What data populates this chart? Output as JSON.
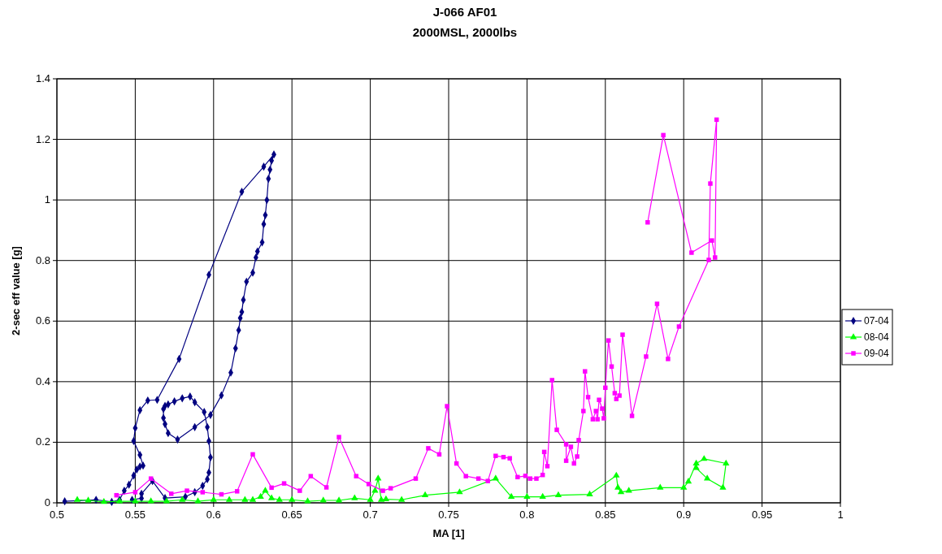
{
  "chart_data": {
    "type": "line",
    "title": "J-066 AF01",
    "subtitle": "2000MSL, 2000lbs",
    "xlabel": "MA [1]",
    "ylabel": "2-sec eff value [g]",
    "xlim": [
      0.5,
      1
    ],
    "xticks": [
      0.5,
      0.55,
      0.6,
      0.65,
      0.7,
      0.75,
      0.8,
      0.85,
      0.9,
      0.95,
      1
    ],
    "ylim": [
      0,
      1.4
    ],
    "yticks": [
      0,
      0.2,
      0.4,
      0.6,
      0.8,
      1,
      1.2,
      1.4
    ],
    "grid": true,
    "legend": "right",
    "series": [
      {
        "name": "07-04",
        "color": "#000080",
        "marker": "diamond",
        "x": [
          0.505,
          0.525,
          0.535,
          0.54,
          0.543,
          0.546,
          0.549,
          0.551,
          0.553,
          0.555,
          0.553,
          0.549,
          0.55,
          0.553,
          0.558,
          0.564,
          0.578,
          0.597,
          0.618,
          0.632,
          0.6385,
          0.637,
          0.636,
          0.635,
          0.634,
          0.633,
          0.632,
          0.631,
          0.628,
          0.627,
          0.625,
          0.621,
          0.619,
          0.618,
          0.617,
          0.616,
          0.614,
          0.611,
          0.605,
          0.598,
          0.588,
          0.577,
          0.571,
          0.569,
          0.568,
          0.568,
          0.569,
          0.571,
          0.575,
          0.58,
          0.585,
          0.588,
          0.594,
          0.596,
          0.597,
          0.598,
          0.597,
          0.596,
          0.593,
          0.588,
          0.582,
          0.569,
          0.561,
          0.554,
          0.554,
          0.548
        ],
        "values": [
          0.005,
          0.01,
          0.003,
          0.01,
          0.04,
          0.06,
          0.09,
          0.11,
          0.12,
          0.123,
          0.158,
          0.204,
          0.247,
          0.306,
          0.338,
          0.34,
          0.475,
          0.753,
          1.027,
          1.11,
          1.15,
          1.13,
          1.1,
          1.07,
          1.0,
          0.95,
          0.92,
          0.86,
          0.83,
          0.81,
          0.76,
          0.73,
          0.67,
          0.63,
          0.61,
          0.57,
          0.51,
          0.43,
          0.355,
          0.29,
          0.25,
          0.209,
          0.23,
          0.26,
          0.28,
          0.31,
          0.32,
          0.325,
          0.335,
          0.345,
          0.351,
          0.332,
          0.3,
          0.25,
          0.204,
          0.15,
          0.1,
          0.078,
          0.056,
          0.035,
          0.02,
          0.016,
          0.072,
          0.03,
          0.015,
          0.01
        ]
      },
      {
        "name": "08-04",
        "color": "#00ff00",
        "marker": "triangle",
        "x": [
          0.513,
          0.52,
          0.53,
          0.54,
          0.55,
          0.56,
          0.57,
          0.58,
          0.59,
          0.6,
          0.61,
          0.62,
          0.625,
          0.63,
          0.633,
          0.637,
          0.642,
          0.65,
          0.66,
          0.67,
          0.68,
          0.69,
          0.7,
          0.703,
          0.705,
          0.707,
          0.71,
          0.72,
          0.735,
          0.757,
          0.78,
          0.79,
          0.8,
          0.81,
          0.82,
          0.84,
          0.857,
          0.858,
          0.86,
          0.865,
          0.885,
          0.9,
          0.903,
          0.908,
          0.913,
          0.927,
          0.925,
          0.915,
          0.908
        ],
        "values": [
          0.01,
          0.008,
          0.003,
          0.005,
          0.005,
          0.005,
          0.005,
          0.01,
          0.005,
          0.01,
          0.01,
          0.01,
          0.01,
          0.02,
          0.04,
          0.015,
          0.01,
          0.01,
          0.005,
          0.008,
          0.008,
          0.015,
          0.01,
          0.04,
          0.08,
          0.01,
          0.012,
          0.01,
          0.025,
          0.035,
          0.08,
          0.02,
          0.02,
          0.02,
          0.025,
          0.028,
          0.09,
          0.05,
          0.035,
          0.04,
          0.05,
          0.05,
          0.07,
          0.13,
          0.145,
          0.13,
          0.05,
          0.08,
          0.115
        ]
      },
      {
        "name": "09-04",
        "color": "#ff00ff",
        "marker": "square",
        "x": [
          0.538,
          0.55,
          0.56,
          0.573,
          0.583,
          0.593,
          0.605,
          0.615,
          0.625,
          0.637,
          0.645,
          0.655,
          0.662,
          0.672,
          0.68,
          0.691,
          0.699,
          0.708,
          0.713,
          0.729,
          0.737,
          0.744,
          0.749,
          0.755,
          0.761,
          0.769,
          0.775,
          0.78,
          0.785,
          0.789,
          0.794,
          0.799,
          0.802,
          0.806,
          0.81,
          0.811,
          0.813,
          0.816,
          0.819,
          0.825,
          0.825,
          0.828,
          0.83,
          0.832,
          0.833,
          0.836,
          0.837,
          0.839,
          0.842,
          0.844,
          0.845,
          0.846,
          0.848,
          0.849,
          0.85,
          0.852,
          0.854,
          0.856,
          0.857,
          0.859,
          0.861,
          0.867,
          0.876,
          0.883,
          0.89,
          0.897,
          0.916,
          0.917,
          0.921,
          0.92,
          0.918,
          0.905,
          0.887,
          0.877
        ],
        "values": [
          0.025,
          0.035,
          0.08,
          0.03,
          0.04,
          0.035,
          0.028,
          0.038,
          0.16,
          0.05,
          0.064,
          0.04,
          0.088,
          0.051,
          0.217,
          0.088,
          0.062,
          0.04,
          0.048,
          0.08,
          0.18,
          0.16,
          0.319,
          0.13,
          0.088,
          0.08,
          0.072,
          0.155,
          0.151,
          0.147,
          0.085,
          0.089,
          0.08,
          0.08,
          0.092,
          0.168,
          0.121,
          0.405,
          0.241,
          0.193,
          0.139,
          0.185,
          0.13,
          0.153,
          0.207,
          0.303,
          0.434,
          0.349,
          0.276,
          0.303,
          0.276,
          0.34,
          0.311,
          0.279,
          0.38,
          0.536,
          0.45,
          0.362,
          0.343,
          0.354,
          0.555,
          0.287,
          0.483,
          0.657,
          0.475,
          0.582,
          0.802,
          1.054,
          1.265,
          0.81,
          0.866,
          0.826,
          1.214,
          0.926
        ]
      }
    ]
  }
}
